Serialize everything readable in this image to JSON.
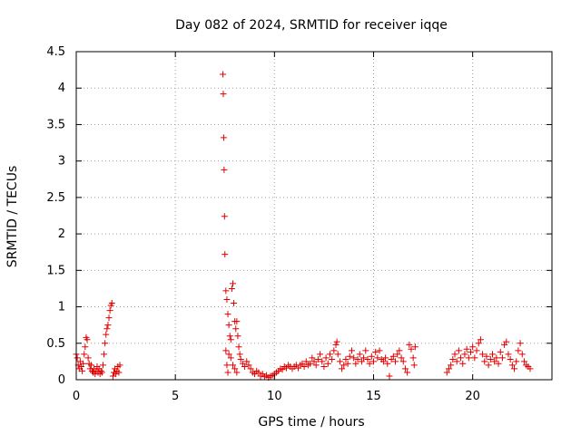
{
  "chart_data": {
    "type": "scatter",
    "title": "Day 082 of 2024, SRMTID for receiver iqqe",
    "xlabel": "GPS time / hours",
    "ylabel": "SRMTID / TECUs",
    "xlim": [
      0,
      24
    ],
    "ylim": [
      0,
      4.5
    ],
    "xticks": [
      0,
      5,
      10,
      15,
      20
    ],
    "xtick_labels": [
      "0",
      "5",
      "10",
      "15",
      "20"
    ],
    "yticks": [
      0,
      0.5,
      1,
      1.5,
      2,
      2.5,
      3,
      3.5,
      4,
      4.5
    ],
    "ytick_labels": [
      "0",
      "0.5",
      "1",
      "1.5",
      "2",
      "2.5",
      "3",
      "3.5",
      "4",
      "4.5"
    ],
    "grid": true,
    "marker": "plus",
    "series": [
      {
        "name": "SRMTID",
        "color": "#e00000",
        "points": [
          [
            0.0,
            0.35
          ],
          [
            0.05,
            0.3
          ],
          [
            0.1,
            0.2
          ],
          [
            0.15,
            0.15
          ],
          [
            0.2,
            0.25
          ],
          [
            0.25,
            0.18
          ],
          [
            0.3,
            0.12
          ],
          [
            0.35,
            0.22
          ],
          [
            0.4,
            0.35
          ],
          [
            0.45,
            0.45
          ],
          [
            0.5,
            0.58
          ],
          [
            0.55,
            0.55
          ],
          [
            0.6,
            0.3
          ],
          [
            0.65,
            0.22
          ],
          [
            0.7,
            0.15
          ],
          [
            0.75,
            0.2
          ],
          [
            0.8,
            0.12
          ],
          [
            0.85,
            0.1
          ],
          [
            0.9,
            0.15
          ],
          [
            0.95,
            0.08
          ],
          [
            1.0,
            0.12
          ],
          [
            1.05,
            0.18
          ],
          [
            1.1,
            0.1
          ],
          [
            1.15,
            0.15
          ],
          [
            1.2,
            0.08
          ],
          [
            1.25,
            0.12
          ],
          [
            1.3,
            0.1
          ],
          [
            1.35,
            0.2
          ],
          [
            1.4,
            0.35
          ],
          [
            1.45,
            0.5
          ],
          [
            1.5,
            0.62
          ],
          [
            1.55,
            0.7
          ],
          [
            1.6,
            0.75
          ],
          [
            1.65,
            0.85
          ],
          [
            1.7,
            0.95
          ],
          [
            1.75,
            1.02
          ],
          [
            1.8,
            1.05
          ],
          [
            1.85,
            0.05
          ],
          [
            1.9,
            0.1
          ],
          [
            1.95,
            0.15
          ],
          [
            2.0,
            0.08
          ],
          [
            2.05,
            0.12
          ],
          [
            2.1,
            0.18
          ],
          [
            2.15,
            0.1
          ],
          [
            2.2,
            0.2
          ],
          [
            7.4,
            4.19
          ],
          [
            7.42,
            3.92
          ],
          [
            7.44,
            3.32
          ],
          [
            7.46,
            2.88
          ],
          [
            7.48,
            2.24
          ],
          [
            7.5,
            1.72
          ],
          [
            7.55,
            1.22
          ],
          [
            7.6,
            1.1
          ],
          [
            7.65,
            0.9
          ],
          [
            7.7,
            0.75
          ],
          [
            7.75,
            0.6
          ],
          [
            7.8,
            0.55
          ],
          [
            7.85,
            1.25
          ],
          [
            7.9,
            1.32
          ],
          [
            7.95,
            1.05
          ],
          [
            8.0,
            0.8
          ],
          [
            8.05,
            0.7
          ],
          [
            8.1,
            0.8
          ],
          [
            8.15,
            0.6
          ],
          [
            8.2,
            0.45
          ],
          [
            8.25,
            0.35
          ],
          [
            8.3,
            0.28
          ],
          [
            7.55,
            0.4
          ],
          [
            7.6,
            0.2
          ],
          [
            7.65,
            0.1
          ],
          [
            7.7,
            0.35
          ],
          [
            7.8,
            0.3
          ],
          [
            7.9,
            0.2
          ],
          [
            8.0,
            0.15
          ],
          [
            8.1,
            0.1
          ],
          [
            8.4,
            0.22
          ],
          [
            8.5,
            0.18
          ],
          [
            8.6,
            0.25
          ],
          [
            8.7,
            0.2
          ],
          [
            8.8,
            0.15
          ],
          [
            8.9,
            0.1
          ],
          [
            9.0,
            0.08
          ],
          [
            9.1,
            0.12
          ],
          [
            9.2,
            0.1
          ],
          [
            9.3,
            0.05
          ],
          [
            9.4,
            0.08
          ],
          [
            9.5,
            0.04
          ],
          [
            9.6,
            0.06
          ],
          [
            9.7,
            0.03
          ],
          [
            9.8,
            0.05
          ],
          [
            9.9,
            0.06
          ],
          [
            10.0,
            0.08
          ],
          [
            10.1,
            0.1
          ],
          [
            10.2,
            0.12
          ],
          [
            10.3,
            0.15
          ],
          [
            10.4,
            0.14
          ],
          [
            10.5,
            0.18
          ],
          [
            10.6,
            0.16
          ],
          [
            10.7,
            0.2
          ],
          [
            10.8,
            0.18
          ],
          [
            10.9,
            0.15
          ],
          [
            11.0,
            0.18
          ],
          [
            11.1,
            0.2
          ],
          [
            11.2,
            0.16
          ],
          [
            11.3,
            0.2
          ],
          [
            11.4,
            0.22
          ],
          [
            11.5,
            0.18
          ],
          [
            11.6,
            0.25
          ],
          [
            11.7,
            0.2
          ],
          [
            11.8,
            0.22
          ],
          [
            11.9,
            0.3
          ],
          [
            12.0,
            0.25
          ],
          [
            12.1,
            0.2
          ],
          [
            12.2,
            0.28
          ],
          [
            12.3,
            0.35
          ],
          [
            12.4,
            0.25
          ],
          [
            12.5,
            0.18
          ],
          [
            12.6,
            0.3
          ],
          [
            12.7,
            0.22
          ],
          [
            12.8,
            0.35
          ],
          [
            12.9,
            0.28
          ],
          [
            13.0,
            0.4
          ],
          [
            13.1,
            0.48
          ],
          [
            13.15,
            0.52
          ],
          [
            13.2,
            0.35
          ],
          [
            13.3,
            0.25
          ],
          [
            13.4,
            0.15
          ],
          [
            13.5,
            0.2
          ],
          [
            13.6,
            0.28
          ],
          [
            13.7,
            0.22
          ],
          [
            13.8,
            0.32
          ],
          [
            13.9,
            0.4
          ],
          [
            14.0,
            0.3
          ],
          [
            14.1,
            0.22
          ],
          [
            14.2,
            0.28
          ],
          [
            14.3,
            0.35
          ],
          [
            14.4,
            0.25
          ],
          [
            14.5,
            0.3
          ],
          [
            14.6,
            0.4
          ],
          [
            14.7,
            0.28
          ],
          [
            14.8,
            0.22
          ],
          [
            14.9,
            0.32
          ],
          [
            15.0,
            0.25
          ],
          [
            15.1,
            0.38
          ],
          [
            15.2,
            0.3
          ],
          [
            15.3,
            0.4
          ],
          [
            15.4,
            0.28
          ],
          [
            15.5,
            0.25
          ],
          [
            15.6,
            0.3
          ],
          [
            15.7,
            0.22
          ],
          [
            15.8,
            0.05
          ],
          [
            15.9,
            0.28
          ],
          [
            16.0,
            0.32
          ],
          [
            16.1,
            0.25
          ],
          [
            16.2,
            0.35
          ],
          [
            16.3,
            0.4
          ],
          [
            16.4,
            0.3
          ],
          [
            16.5,
            0.25
          ],
          [
            16.6,
            0.15
          ],
          [
            16.7,
            0.1
          ],
          [
            16.8,
            0.48
          ],
          [
            16.9,
            0.42
          ],
          [
            17.0,
            0.3
          ],
          [
            17.05,
            0.2
          ],
          [
            17.1,
            0.45
          ],
          [
            18.7,
            0.1
          ],
          [
            18.8,
            0.15
          ],
          [
            18.9,
            0.2
          ],
          [
            19.0,
            0.28
          ],
          [
            19.1,
            0.35
          ],
          [
            19.2,
            0.25
          ],
          [
            19.3,
            0.4
          ],
          [
            19.4,
            0.3
          ],
          [
            19.5,
            0.22
          ],
          [
            19.6,
            0.35
          ],
          [
            19.7,
            0.42
          ],
          [
            19.8,
            0.3
          ],
          [
            19.9,
            0.38
          ],
          [
            20.0,
            0.45
          ],
          [
            20.1,
            0.3
          ],
          [
            20.2,
            0.4
          ],
          [
            20.3,
            0.5
          ],
          [
            20.4,
            0.55
          ],
          [
            20.5,
            0.35
          ],
          [
            20.6,
            0.25
          ],
          [
            20.7,
            0.32
          ],
          [
            20.8,
            0.2
          ],
          [
            20.9,
            0.28
          ],
          [
            21.0,
            0.35
          ],
          [
            21.1,
            0.25
          ],
          [
            21.2,
            0.3
          ],
          [
            21.3,
            0.22
          ],
          [
            21.4,
            0.38
          ],
          [
            21.5,
            0.3
          ],
          [
            21.6,
            0.48
          ],
          [
            21.7,
            0.52
          ],
          [
            21.8,
            0.35
          ],
          [
            21.9,
            0.28
          ],
          [
            22.0,
            0.2
          ],
          [
            22.1,
            0.15
          ],
          [
            22.2,
            0.25
          ],
          [
            22.3,
            0.4
          ],
          [
            22.4,
            0.5
          ],
          [
            22.5,
            0.35
          ],
          [
            22.6,
            0.25
          ],
          [
            22.7,
            0.2
          ],
          [
            22.8,
            0.18
          ],
          [
            22.9,
            0.15
          ]
        ]
      }
    ]
  }
}
